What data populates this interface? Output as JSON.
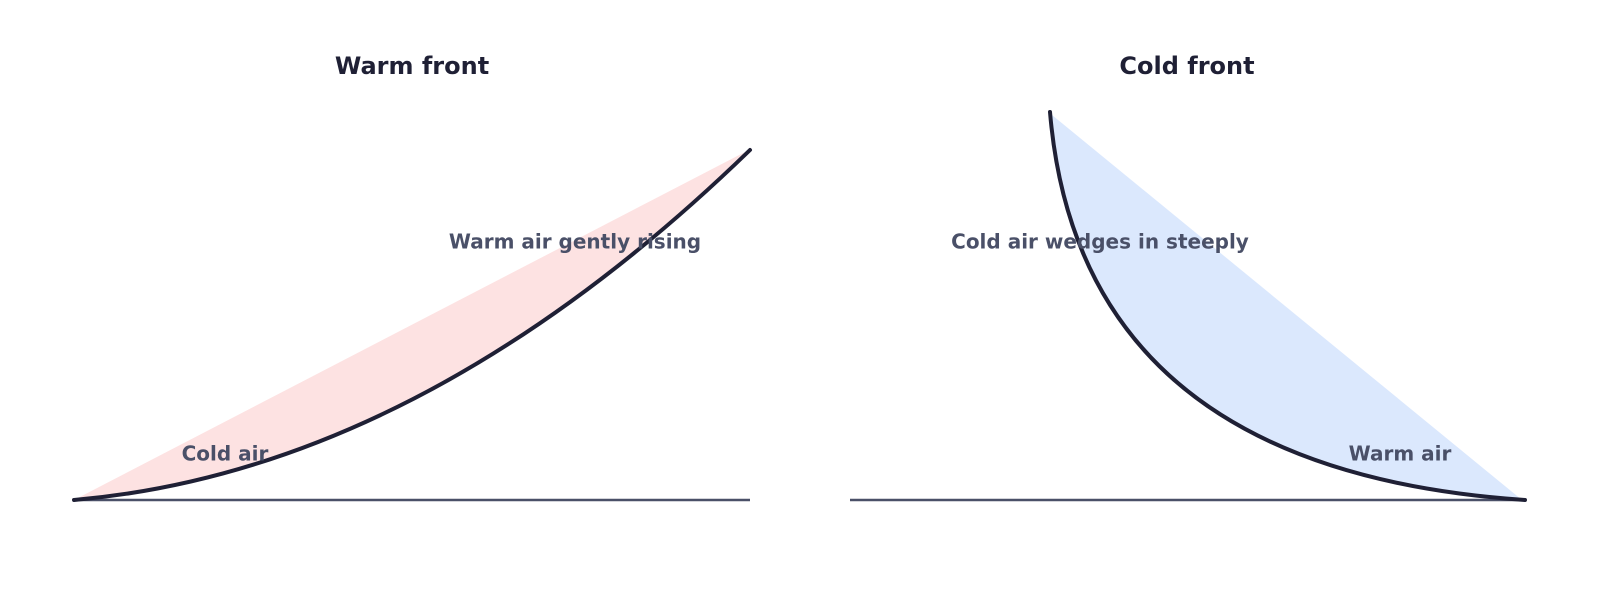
{
  "panels": [
    {
      "title": "Warm front",
      "labels": [
        "Warm air gently rising",
        "Cold air"
      ]
    },
    {
      "title": "Cold front",
      "labels": [
        "Cold air wedges in steeply",
        "Warm air"
      ]
    }
  ]
}
